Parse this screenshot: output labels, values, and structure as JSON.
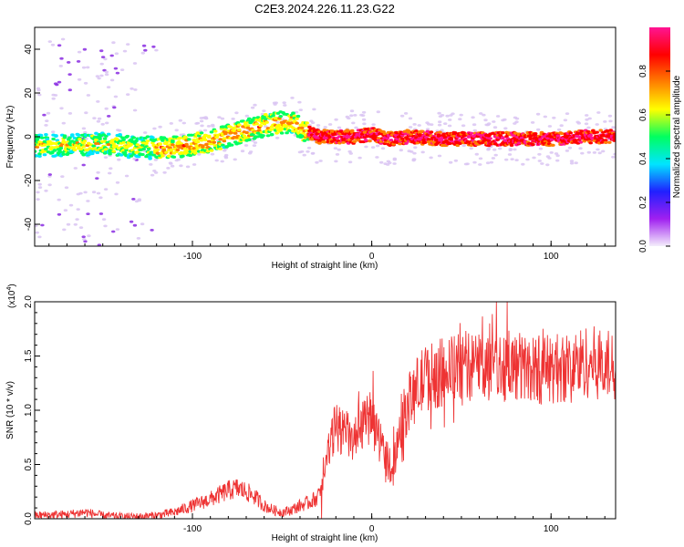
{
  "chart_data": [
    {
      "type": "heatmap",
      "title": "C2E3.2024.226.11.23.G22",
      "xlabel": "Height of straight line (km)",
      "ylabel": "Frequency (Hz)",
      "xlim": [
        -188,
        136
      ],
      "ylim": [
        -50,
        50
      ],
      "xticks": [
        "-100",
        "0",
        "100"
      ],
      "yticks": [
        "40",
        "20",
        "0",
        "-20",
        "-40"
      ],
      "grid": false,
      "colorbar": {
        "label": "Normalized spectral amplitude",
        "range": [
          0,
          1
        ],
        "ticks": [
          "0.0",
          "0.2",
          "0.4",
          "0.6",
          "0.8"
        ],
        "colors": [
          "#f4eefb",
          "#a020f0",
          "#2020ff",
          "#00e5ff",
          "#00ff60",
          "#ffff00",
          "#ff7f00",
          "#ff0000",
          "#ff1493"
        ]
      },
      "ridge": {
        "x": [
          -188,
          -170,
          -150,
          -130,
          -110,
          -90,
          -70,
          -55,
          -45,
          -38,
          -30,
          -20,
          -10,
          0,
          10,
          20,
          40,
          60,
          80,
          100,
          120,
          136
        ],
        "y": [
          -4,
          -4,
          -3,
          -5,
          -5,
          -2,
          3,
          6,
          7,
          3,
          0,
          0,
          0,
          1,
          -1,
          0,
          -1,
          -1,
          -1,
          -1,
          0,
          0
        ]
      }
    },
    {
      "type": "line",
      "xlabel": "Height of straight line (km)",
      "ylabel": "SNR (10 * v/v)",
      "y_multiplier": "(x10",
      "y_multiplier_exp": "4",
      "xlim": [
        -188,
        136
      ],
      "ylim": [
        0,
        2.0
      ],
      "xticks": [
        "-100",
        "0",
        "100"
      ],
      "yticks": [
        "0.0",
        "0.5",
        "1.0",
        "1.5",
        "2.0"
      ],
      "color": "#ee3333",
      "grid": false,
      "series": [
        {
          "x": [
            -188,
            -170,
            -160,
            -150,
            -140,
            -130,
            -120,
            -110,
            -100,
            -95,
            -90,
            -85,
            -80,
            -75,
            -70,
            -65,
            -60,
            -55,
            -50,
            -45,
            -40,
            -35,
            -30,
            -28,
            -25,
            -22,
            -20,
            -15,
            -10,
            -5,
            0,
            5,
            10,
            12,
            15,
            20,
            25,
            30,
            40,
            50,
            60,
            70,
            80,
            90,
            100,
            110,
            120,
            130,
            136
          ],
          "y": [
            0.03,
            0.04,
            0.06,
            0.03,
            0.02,
            0.02,
            0.03,
            0.06,
            0.12,
            0.15,
            0.18,
            0.22,
            0.26,
            0.28,
            0.25,
            0.2,
            0.12,
            0.08,
            0.06,
            0.08,
            0.12,
            0.15,
            0.2,
            0.35,
            0.55,
            0.75,
            0.85,
            0.8,
            0.7,
            0.85,
            0.95,
            0.7,
            0.5,
            0.45,
            0.8,
            1.05,
            1.2,
            1.3,
            1.35,
            1.4,
            1.42,
            1.42,
            1.4,
            1.38,
            1.38,
            1.4,
            1.45,
            1.42,
            1.4
          ]
        }
      ]
    }
  ]
}
